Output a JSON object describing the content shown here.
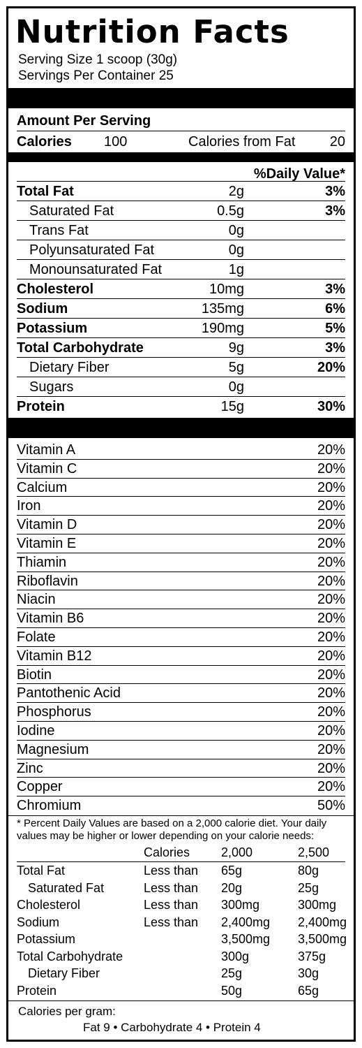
{
  "title": "Nutrition Facts",
  "serving_size": "Serving Size 1 scoop (30g)",
  "servings_per_container": "Servings Per Container 25",
  "amount_per_serving": "Amount Per Serving",
  "calories_label": "Calories",
  "calories_value": "100",
  "calories_from_fat_label": "Calories from Fat",
  "calories_from_fat_value": "20",
  "daily_value_header": "%Daily Value*",
  "nutrients": [
    {
      "name": "Total Fat",
      "amount": "2g",
      "dv": "3%"
    },
    {
      "name": "Saturated Fat",
      "amount": "0.5g",
      "dv": "3%"
    },
    {
      "name": "Trans Fat",
      "amount": "0g",
      "dv": ""
    },
    {
      "name": "Polyunsaturated Fat",
      "amount": "0g",
      "dv": ""
    },
    {
      "name": "Monounsaturated Fat",
      "amount": "1g",
      "dv": ""
    },
    {
      "name": "Cholesterol",
      "amount": "10mg",
      "dv": "3%"
    },
    {
      "name": "Sodium",
      "amount": "135mg",
      "dv": "6%"
    },
    {
      "name": "Potassium",
      "amount": "190mg",
      "dv": "5%"
    },
    {
      "name": "Total Carbohydrate",
      "amount": "9g",
      "dv": "3%"
    },
    {
      "name": "Dietary Fiber",
      "amount": "5g",
      "dv": "20%"
    },
    {
      "name": "Sugars",
      "amount": "0g",
      "dv": ""
    },
    {
      "name": "Protein",
      "amount": "15g",
      "dv": "30%"
    }
  ],
  "vitamins": [
    {
      "name": "Vitamin A",
      "dv": "20%"
    },
    {
      "name": "Vitamin C",
      "dv": "20%"
    },
    {
      "name": "Calcium",
      "dv": "20%"
    },
    {
      "name": "Iron",
      "dv": "20%"
    },
    {
      "name": "Vitamin D",
      "dv": "20%"
    },
    {
      "name": "Vitamin E",
      "dv": "20%"
    },
    {
      "name": "Thiamin",
      "dv": "20%"
    },
    {
      "name": "Riboflavin",
      "dv": "20%"
    },
    {
      "name": "Niacin",
      "dv": "20%"
    },
    {
      "name": "Vitamin B6",
      "dv": "20%"
    },
    {
      "name": "Folate",
      "dv": "20%"
    },
    {
      "name": "Vitamin B12",
      "dv": "20%"
    },
    {
      "name": "Biotin",
      "dv": "20%"
    },
    {
      "name": "Pantothenic Acid",
      "dv": "20%"
    },
    {
      "name": "Phosphorus",
      "dv": "20%"
    },
    {
      "name": "Iodine",
      "dv": "20%"
    },
    {
      "name": "Magnesium",
      "dv": "20%"
    },
    {
      "name": "Zinc",
      "dv": "20%"
    },
    {
      "name": "Copper",
      "dv": "20%"
    },
    {
      "name": "Chromium",
      "dv": "50%"
    }
  ],
  "footnote": "* Percent Daily Values are based on a 2,000 calorie diet. Your daily values may be higher or lower depending on your calorie needs:",
  "dv_table": {
    "header": [
      "",
      "Calories",
      "2,000",
      "2,500"
    ],
    "rows": [
      [
        "Total Fat",
        "Less than",
        "65g",
        "80g"
      ],
      [
        "Saturated Fat",
        "Less than",
        "20g",
        "25g"
      ],
      [
        "Cholesterol",
        "Less than",
        "300mg",
        "300mg"
      ],
      [
        "Sodium",
        "Less than",
        "2,400mg",
        "2,400mg"
      ],
      [
        "Potassium",
        "",
        "3,500mg",
        "3,500mg"
      ],
      [
        "Total Carbohydrate",
        "",
        "300g",
        "375g"
      ],
      [
        "Dietary Fiber",
        "",
        "25g",
        "30g"
      ],
      [
        "Protein",
        "",
        "50g",
        "65g"
      ]
    ]
  },
  "calories_per_gram_label": "Calories per gram:",
  "calories_per_gram_values": "Fat 9 • Carbohydrate 4 • Protein 4"
}
